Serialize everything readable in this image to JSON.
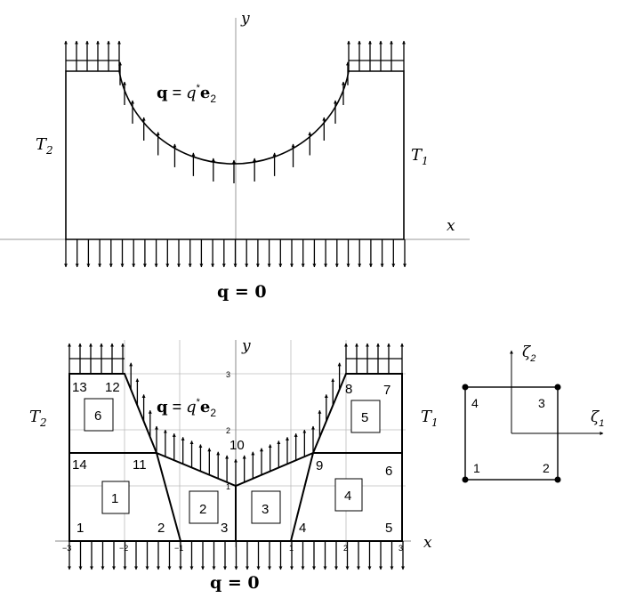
{
  "top_figure": {
    "axis_x": "x",
    "axis_y": "y",
    "label_left": "T",
    "label_left_sub": "2",
    "label_right": "T",
    "label_right_sub": "1",
    "load_top": {
      "q": "q",
      "eq": " = ",
      "qstar": "q",
      "star": "*",
      "e": "e",
      "sub": "2"
    },
    "load_bottom": "q = 0"
  },
  "bottom_figure": {
    "axis_x": "x",
    "axis_y": "y",
    "label_left": "T",
    "label_left_sub": "2",
    "label_right": "T",
    "label_right_sub": "1",
    "load_top": {
      "q": "q",
      "eq": " = ",
      "qstar": "q",
      "star": "*",
      "e": "e",
      "sub": "2"
    },
    "load_bottom": "q = 0",
    "x_ticks": [
      "−3",
      "−2",
      "−1",
      "1",
      "2",
      "3"
    ],
    "y_ticks": [
      "3",
      "2",
      "1"
    ],
    "node_labels": [
      "1",
      "2",
      "3",
      "4",
      "5",
      "6",
      "7",
      "8",
      "9",
      "10",
      "11",
      "12",
      "13",
      "14"
    ],
    "element_labels": [
      "1",
      "2",
      "3",
      "4",
      "5",
      "6"
    ]
  },
  "reference_element": {
    "axis_1": "ζ",
    "axis_1_sub": "1",
    "axis_2": "ζ",
    "axis_2_sub": "2",
    "corner_labels": [
      "1",
      "2",
      "3",
      "4"
    ]
  }
}
